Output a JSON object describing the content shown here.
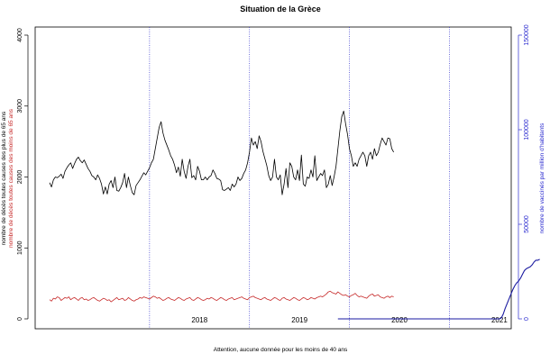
{
  "chart_data": {
    "type": "line",
    "title": "Situation de la Grèce",
    "footnote": "Attention, aucune donnée pour les moins de 40 ans",
    "ylabel_left_1": "nombre de décès toutes causes des plus de 65 ans",
    "ylabel_left_2": "nombre de décès toutes causes des moins de 65 ans",
    "ylabel_right": "nombre de vaccinés par million d'habitants",
    "ylim_left": [
      0,
      4000
    ],
    "yticks_left": [
      0,
      1000,
      2000,
      3000,
      4000
    ],
    "yticks_left_labels": [
      "0",
      "1000",
      "2000",
      "3000",
      "4000"
    ],
    "ylim_right": [
      0,
      150000
    ],
    "yticks_right": [
      0,
      50000,
      100000,
      150000
    ],
    "yticks_right_labels": [
      "0",
      "50000",
      "100000",
      "150000"
    ],
    "year_labels": [
      {
        "week": 78,
        "label": "2018"
      },
      {
        "week": 130,
        "label": "2019"
      },
      {
        "week": 182,
        "label": "2020"
      },
      {
        "week": 234,
        "label": "2021"
      }
    ],
    "year_boundaries": [
      52,
      104,
      156,
      208
    ],
    "x_weeks_total": 236,
    "colors": {
      "over65": "#000000",
      "under65": "#c62828",
      "vaccinated": "#1a1aa0",
      "right_axis": "#2b2bcf",
      "year_lines": "#3333cc"
    },
    "series": [
      {
        "name": "nombre de décès toutes causes des plus de 65 ans",
        "color": "#000000",
        "axis": "left",
        "x_start": 0,
        "values": [
          1920,
          1860,
          1960,
          2000,
          1990,
          2010,
          2040,
          1980,
          2080,
          2130,
          2170,
          2200,
          2120,
          2190,
          2250,
          2280,
          2230,
          2200,
          2240,
          2180,
          2120,
          2080,
          2020,
          2000,
          1960,
          2030,
          1980,
          1900,
          1760,
          1860,
          1760,
          1900,
          1950,
          1850,
          2000,
          1810,
          1800,
          1850,
          1920,
          2050,
          1850,
          2000,
          1880,
          1780,
          1750,
          1880,
          1920,
          1960,
          2010,
          2060,
          2030,
          2080,
          2130,
          2200,
          2250,
          2400,
          2550,
          2700,
          2780,
          2620,
          2520,
          2450,
          2380,
          2300,
          2250,
          2170,
          2060,
          2140,
          2010,
          2250,
          2080,
          1980,
          2150,
          2250,
          1990,
          2020,
          1960,
          2150,
          2080,
          1960,
          1960,
          2000,
          1960,
          2000,
          2020,
          2100,
          2050,
          1980,
          1970,
          1950,
          1820,
          1810,
          1830,
          1850,
          1810,
          1900,
          1860,
          1900,
          2000,
          1950,
          1980,
          2050,
          2100,
          2200,
          2350,
          2550,
          2450,
          2500,
          2400,
          2580,
          2500,
          2360,
          2260,
          2160,
          2020,
          1950,
          2000,
          2250,
          2000,
          1960,
          2030,
          1750,
          1900,
          2120,
          1850,
          2200,
          2150,
          2000,
          1960,
          2100,
          1950,
          2310,
          1900,
          1870,
          2000,
          1980,
          2100,
          2000,
          2300,
          1950,
          2000,
          2050,
          2020,
          2100,
          1850,
          1900,
          2020,
          1880,
          2000,
          2150,
          2400,
          2650,
          2850,
          2930,
          2750,
          2600,
          2400,
          2300,
          2150,
          2200,
          2150,
          2250,
          2300,
          2350,
          2300,
          2150,
          2300,
          2350,
          2250,
          2400,
          2300,
          2350,
          2460,
          2550,
          2500,
          2450,
          2550,
          2540,
          2400,
          2350
        ]
      },
      {
        "name": "nombre de décès toutes causes des moins de 65 ans",
        "color": "#c62828",
        "axis": "left",
        "x_start": 0,
        "values": [
          270,
          250,
          290,
          280,
          310,
          300,
          260,
          280,
          300,
          290,
          310,
          270,
          290,
          300,
          280,
          260,
          290,
          300,
          270,
          280,
          260,
          270,
          290,
          300,
          280,
          260,
          250,
          270,
          290,
          280,
          260,
          270,
          240,
          260,
          280,
          300,
          270,
          280,
          290,
          260,
          270,
          300,
          280,
          260,
          250,
          270,
          280,
          300,
          290,
          310,
          300,
          290,
          280,
          300,
          320,
          310,
          290,
          300,
          280,
          260,
          270,
          290,
          300,
          280,
          270,
          260,
          280,
          300,
          290,
          270,
          260,
          280,
          290,
          300,
          270,
          260,
          280,
          300,
          290,
          270,
          260,
          270,
          290,
          280,
          300,
          290,
          270,
          260,
          280,
          300,
          290,
          270,
          260,
          280,
          290,
          300,
          270,
          280,
          290,
          300,
          310,
          290,
          280,
          270,
          300,
          310,
          320,
          300,
          290,
          280,
          270,
          290,
          300,
          280,
          270,
          260,
          280,
          300,
          290,
          270,
          260,
          290,
          300,
          280,
          270,
          260,
          280,
          300,
          290,
          270,
          260,
          280,
          300,
          290,
          270,
          280,
          300,
          290,
          280,
          300,
          310,
          320,
          310,
          330,
          350,
          380,
          390,
          370,
          360,
          350,
          380,
          360,
          340,
          330,
          340,
          320,
          310,
          330,
          340,
          360,
          330,
          310,
          320,
          310,
          300,
          290,
          320,
          340,
          350,
          320,
          330,
          340,
          310,
          300,
          290,
          310,
          320,
          300,
          320,
          310
        ]
      },
      {
        "name": "nombre de vaccinés par million d'habitants",
        "color": "#1a1aa0",
        "axis": "right",
        "x_start": 150,
        "values": [
          0,
          0,
          0,
          0,
          0,
          0,
          0,
          0,
          0,
          0,
          0,
          0,
          0,
          0,
          0,
          0,
          0,
          0,
          0,
          0,
          0,
          0,
          0,
          0,
          0,
          0,
          0,
          0,
          0,
          0,
          0,
          0,
          0,
          0,
          0,
          0,
          0,
          0,
          0,
          0,
          0,
          0,
          0,
          0,
          0,
          0,
          0,
          0,
          0,
          0,
          0,
          0,
          0,
          0,
          0,
          0,
          0,
          0,
          0,
          0,
          0,
          0,
          0,
          0,
          0,
          0,
          0,
          0,
          0,
          0,
          0,
          0,
          0,
          0,
          0,
          0,
          0,
          0,
          0,
          0,
          0,
          0,
          0,
          0,
          0,
          500,
          2500,
          5500,
          8000,
          10500,
          13000,
          15500,
          17500,
          19000,
          20000,
          21500,
          23500,
          25500,
          26500,
          27000,
          27500,
          28500,
          30000,
          31000,
          31000,
          31500
        ]
      }
    ]
  }
}
